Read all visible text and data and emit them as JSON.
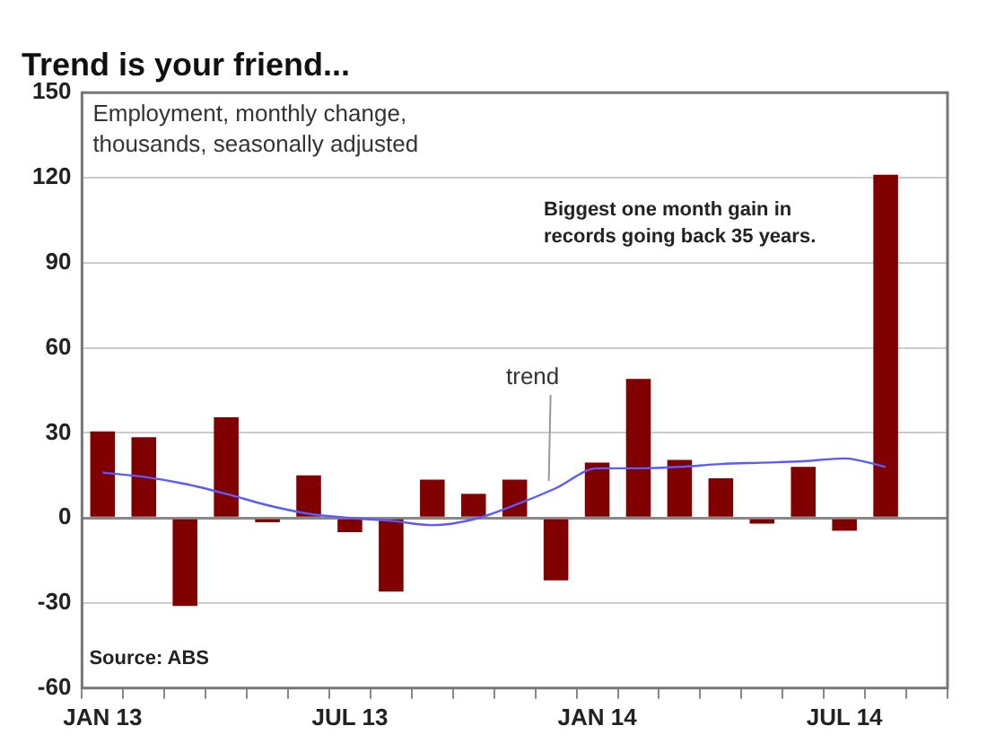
{
  "chart_data": {
    "type": "bar",
    "title": "Trend is your friend...",
    "subtitle": "Employment, monthly change, thousands, seasonally adjusted",
    "categories": [
      "JAN 13",
      null,
      null,
      null,
      null,
      null,
      "JUL 13",
      null,
      null,
      null,
      null,
      null,
      "JAN 14",
      null,
      null,
      null,
      null,
      null,
      "JUL 14",
      null,
      null
    ],
    "series": [
      {
        "color": "#800000",
        "values": [
          30.5,
          28.5,
          -31,
          35.5,
          -1.5,
          15,
          -5,
          -26,
          13.5,
          8.5,
          13.5,
          -22,
          19.5,
          49,
          20.5,
          14,
          -2,
          18,
          -4.5,
          121,
          null
        ]
      },
      {
        "type": "line",
        "name": "trend",
        "color": "#5a5aff",
        "values": [
          16,
          14.5,
          12,
          8.5,
          4.5,
          1.5,
          0,
          -1,
          -2.5,
          -0.5,
          4.5,
          10.5,
          17.5,
          17.5,
          18,
          19,
          19.5,
          20,
          21,
          18,
          null
        ]
      }
    ],
    "ylim": [
      -60,
      150
    ],
    "yticks": [
      -60,
      -30,
      0,
      30,
      60,
      90,
      120,
      150
    ],
    "grid": "y",
    "annotations": [
      "Biggest one month gain in records going back 35 years.",
      "Source: ABS"
    ]
  }
}
